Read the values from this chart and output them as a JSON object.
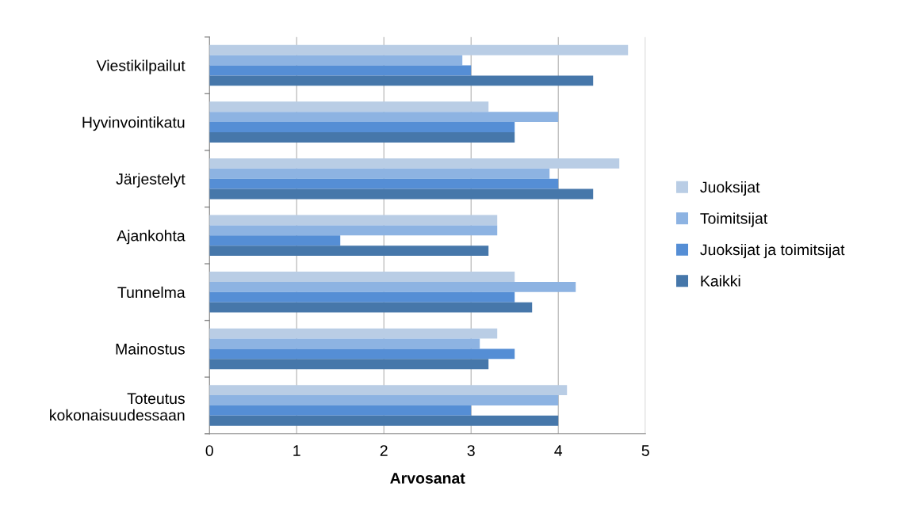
{
  "chart_data": {
    "type": "bar",
    "orientation": "horizontal",
    "xlabel": "Arvosanat",
    "categories": [
      "Viestikilpailut",
      "Hyvinvointikatu",
      "Järjestelyt",
      "Ajankohta",
      "Tunnelma",
      "Mainostus",
      "Toteutus\nkokonaisuudessaan"
    ],
    "series": [
      {
        "name": "Juoksijat",
        "color": "#b9cde5",
        "values": [
          4.8,
          3.2,
          4.7,
          3.3,
          3.5,
          3.3,
          4.1
        ]
      },
      {
        "name": "Toimitsijat",
        "color": "#8db3e2",
        "values": [
          2.9,
          4.0,
          3.9,
          3.3,
          4.2,
          3.1,
          4.0
        ]
      },
      {
        "name": "Juoksijat ja toimitsijat",
        "color": "#558ed5",
        "values": [
          3.0,
          3.5,
          4.0,
          1.5,
          3.5,
          3.5,
          3.0
        ]
      },
      {
        "name": "Kaikki",
        "color": "#4677aa",
        "values": [
          4.4,
          3.5,
          4.4,
          3.2,
          3.7,
          3.2,
          4.0
        ]
      }
    ],
    "xlim": [
      0,
      5
    ],
    "xticks": [
      0,
      1,
      2,
      3,
      4,
      5
    ],
    "grid": "x",
    "legend": "right"
  }
}
